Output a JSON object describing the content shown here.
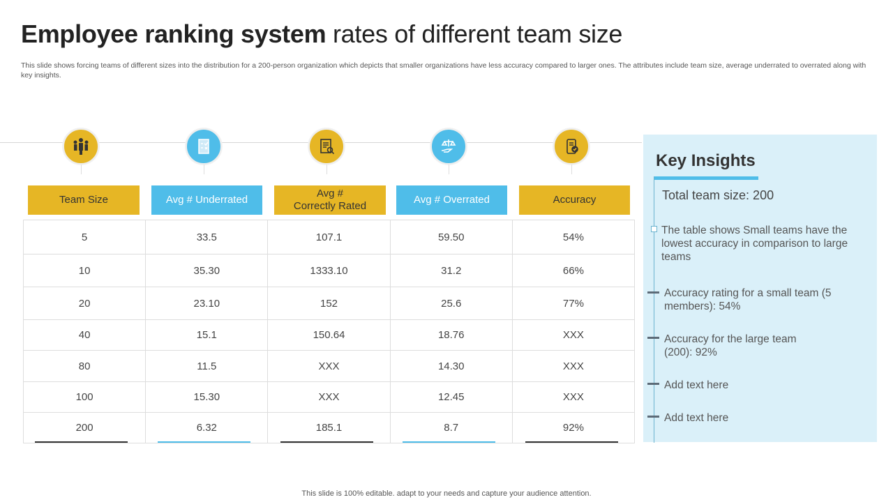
{
  "title_bold": "Employee ranking system",
  "title_rest": " rates of different team size",
  "subtitle": "This slide shows forcing teams of different sizes into the distribution for a 200-person organization which depicts that smaller organizations have less accuracy compared to larger ones. The attributes include team size, average underrated to overrated along with key insights.",
  "colors": {
    "yellow": "#e6b625",
    "blue": "#4fbde9",
    "panel": "#daf0f9"
  },
  "columns": [
    {
      "label": "Team Size",
      "icon": "team-icon",
      "color": "yellow"
    },
    {
      "label": "Avg # Underrated",
      "icon": "checklist-icon",
      "color": "blue"
    },
    {
      "label": "Avg #\nCorrectly Rated",
      "icon": "clipboard-search-icon",
      "color": "yellow"
    },
    {
      "label": "Avg # Overrated",
      "icon": "scale-hand-icon",
      "color": "blue"
    },
    {
      "label": "Accuracy",
      "icon": "mobile-check-icon",
      "color": "yellow"
    }
  ],
  "rows": [
    [
      "5",
      "33.5",
      "107.1",
      "59.50",
      "54%"
    ],
    [
      "10",
      "35.30",
      "1333.10",
      "31.2",
      "66%"
    ],
    [
      "20",
      "23.10",
      "152",
      "25.6",
      "77%"
    ],
    [
      "40",
      "15.1",
      "150.64",
      "18.76",
      "XXX"
    ],
    [
      "80",
      "11.5",
      "XXX",
      "14.30",
      "XXX"
    ],
    [
      "100",
      "15.30",
      "XXX",
      "12.45",
      "XXX"
    ],
    [
      "200",
      "6.32",
      "185.1",
      "8.7",
      "92%"
    ]
  ],
  "insights": {
    "title": "Key Insights",
    "total": "Total team size: 200",
    "items": [
      "The table shows Small teams have the lowest accuracy in comparison to large teams",
      "Accuracy rating for a small team (5 members): 54%",
      "Accuracy for the large team (200): 92%",
      "Add text here",
      "Add text here"
    ]
  },
  "footer": "This slide is 100% editable. adapt to your needs and capture your audience attention."
}
